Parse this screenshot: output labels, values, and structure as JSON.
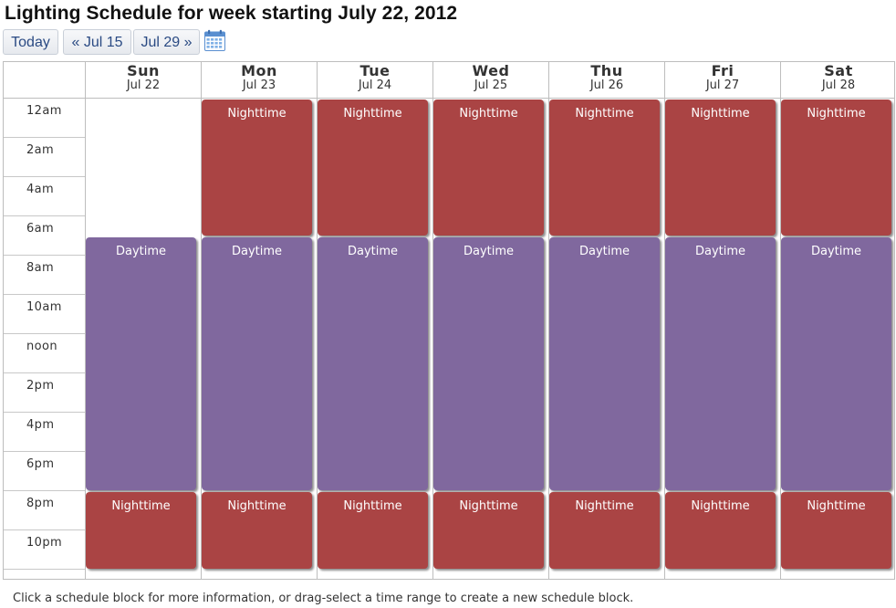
{
  "page_title": "Lighting Schedule for week starting July 22, 2012",
  "nav": {
    "today": "Today",
    "prev": "« Jul 15",
    "next": "Jul 29 »"
  },
  "days": [
    {
      "name": "Sun",
      "date": "Jul 22"
    },
    {
      "name": "Mon",
      "date": "Jul 23"
    },
    {
      "name": "Tue",
      "date": "Jul 24"
    },
    {
      "name": "Wed",
      "date": "Jul 25"
    },
    {
      "name": "Thu",
      "date": "Jul 26"
    },
    {
      "name": "Fri",
      "date": "Jul 27"
    },
    {
      "name": "Sat",
      "date": "Jul 28"
    }
  ],
  "time_labels": [
    "12am",
    "2am",
    "4am",
    "6am",
    "8am",
    "10am",
    "noon",
    "2pm",
    "4pm",
    "6pm",
    "8pm",
    "10pm"
  ],
  "schedule_blocks": [
    {
      "day": 1,
      "start_hour": 0,
      "end_hour": 7,
      "label": "Nighttime",
      "kind": "night"
    },
    {
      "day": 2,
      "start_hour": 0,
      "end_hour": 7,
      "label": "Nighttime",
      "kind": "night"
    },
    {
      "day": 3,
      "start_hour": 0,
      "end_hour": 7,
      "label": "Nighttime",
      "kind": "night"
    },
    {
      "day": 4,
      "start_hour": 0,
      "end_hour": 7,
      "label": "Nighttime",
      "kind": "night"
    },
    {
      "day": 5,
      "start_hour": 0,
      "end_hour": 7,
      "label": "Nighttime",
      "kind": "night"
    },
    {
      "day": 6,
      "start_hour": 0,
      "end_hour": 7,
      "label": "Nighttime",
      "kind": "night"
    },
    {
      "day": 0,
      "start_hour": 7,
      "end_hour": 20,
      "label": "Daytime",
      "kind": "day"
    },
    {
      "day": 1,
      "start_hour": 7,
      "end_hour": 20,
      "label": "Daytime",
      "kind": "day"
    },
    {
      "day": 2,
      "start_hour": 7,
      "end_hour": 20,
      "label": "Daytime",
      "kind": "day"
    },
    {
      "day": 3,
      "start_hour": 7,
      "end_hour": 20,
      "label": "Daytime",
      "kind": "day"
    },
    {
      "day": 4,
      "start_hour": 7,
      "end_hour": 20,
      "label": "Daytime",
      "kind": "day"
    },
    {
      "day": 5,
      "start_hour": 7,
      "end_hour": 20,
      "label": "Daytime",
      "kind": "day"
    },
    {
      "day": 6,
      "start_hour": 7,
      "end_hour": 20,
      "label": "Daytime",
      "kind": "day"
    },
    {
      "day": 0,
      "start_hour": 20,
      "end_hour": 24,
      "label": "Nighttime",
      "kind": "night"
    },
    {
      "day": 1,
      "start_hour": 20,
      "end_hour": 24,
      "label": "Nighttime",
      "kind": "night"
    },
    {
      "day": 2,
      "start_hour": 20,
      "end_hour": 24,
      "label": "Nighttime",
      "kind": "night"
    },
    {
      "day": 3,
      "start_hour": 20,
      "end_hour": 24,
      "label": "Nighttime",
      "kind": "night"
    },
    {
      "day": 4,
      "start_hour": 20,
      "end_hour": 24,
      "label": "Nighttime",
      "kind": "night"
    },
    {
      "day": 5,
      "start_hour": 20,
      "end_hour": 24,
      "label": "Nighttime",
      "kind": "night"
    },
    {
      "day": 6,
      "start_hour": 20,
      "end_hour": 24,
      "label": "Nighttime",
      "kind": "night"
    }
  ],
  "colors": {
    "night": "#aa4444",
    "day": "#80689e"
  },
  "icons": {
    "calendar": "calendar-icon"
  },
  "footer_text": "Click a schedule block for more information, or drag-select a time range to create a new schedule block."
}
